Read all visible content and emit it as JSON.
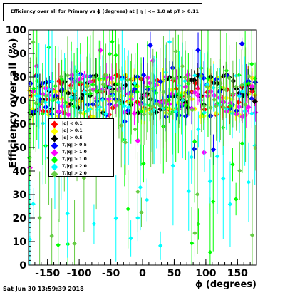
{
  "chart_data": {
    "type": "scatter",
    "title": "Efficiency over all for Primary vs ϕ (degrees) at | η | <= 1.0 at pT > 0.11",
    "xlabel": "ϕ (degrees)",
    "ylabel": "Efficiency over all (%)",
    "xlim": [
      -180,
      180
    ],
    "ylim": [
      0,
      100
    ],
    "xticks": [
      "-150",
      "-100",
      "-50",
      "0",
      "50",
      "100",
      "150"
    ],
    "yticks": [
      "0",
      "10",
      "20",
      "30",
      "40",
      "50",
      "60",
      "70",
      "80",
      "90",
      "100"
    ],
    "grid": false,
    "legend_position": "middle-left",
    "series": [
      {
        "name": "|q| < 0.1",
        "color": "#ff0000"
      },
      {
        "name": "|q| > 0.1",
        "color": "#ffff00"
      },
      {
        "name": "|q| > 0.5",
        "color": "#000000"
      },
      {
        "name": "with pT/|q| > 0.5",
        "color": "#0000ff"
      },
      {
        "name": "with pT/|q| > 1.0",
        "color": "#ff00ff"
      },
      {
        "name": "with pT/|q| > 1.0",
        "color": "#00ff00"
      },
      {
        "name": "with pT/|q| > 2.0",
        "color": "#00ffff"
      },
      {
        "name": "with pT/|q| > 2.0",
        "color": "#66cc44"
      }
    ],
    "legend_labels": [
      "|q| < 0.1",
      "|q| > 0.1",
      "|q| > 0.5",
      "T/|q| > 0.5",
      "T/|q| > 1.0",
      "T/|q| > 1.0",
      "T/|q| > 2.0",
      "T/|q| > 2.0"
    ],
    "typical_level_percent": 72
  },
  "footer": "Sat Jun 30 13:59:39 2018"
}
